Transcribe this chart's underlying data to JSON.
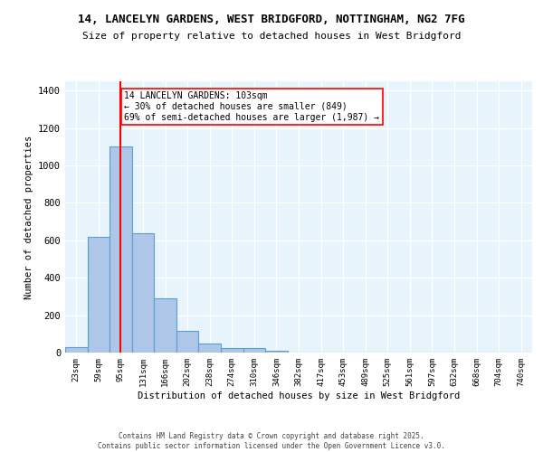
{
  "title_line1": "14, LANCELYN GARDENS, WEST BRIDGFORD, NOTTINGHAM, NG2 7FG",
  "title_line2": "Size of property relative to detached houses in West Bridgford",
  "xlabel": "Distribution of detached houses by size in West Bridgford",
  "ylabel": "Number of detached properties",
  "bar_labels": [
    "23sqm",
    "59sqm",
    "95sqm",
    "131sqm",
    "166sqm",
    "202sqm",
    "238sqm",
    "274sqm",
    "310sqm",
    "346sqm",
    "382sqm",
    "417sqm",
    "453sqm",
    "489sqm",
    "525sqm",
    "561sqm",
    "597sqm",
    "632sqm",
    "668sqm",
    "704sqm",
    "740sqm"
  ],
  "bar_values": [
    30,
    620,
    1100,
    640,
    290,
    115,
    48,
    22,
    22,
    10,
    0,
    0,
    0,
    0,
    0,
    0,
    0,
    0,
    0,
    0,
    0
  ],
  "bar_color": "#aec6e8",
  "bar_edge_color": "#5a9fd4",
  "vline_x_idx": 2,
  "vline_color": "red",
  "annotation_text": "14 LANCELYN GARDENS: 103sqm\n← 30% of detached houses are smaller (849)\n69% of semi-detached houses are larger (1,987) →",
  "annotation_box_color": "white",
  "annotation_box_edge_color": "red",
  "ylim": [
    0,
    1450
  ],
  "yticks": [
    0,
    200,
    400,
    600,
    800,
    1000,
    1200,
    1400
  ],
  "background_color": "#e8f4fb",
  "grid_color": "white",
  "footer_line1": "Contains HM Land Registry data © Crown copyright and database right 2025.",
  "footer_line2": "Contains public sector information licensed under the Open Government Licence v3.0."
}
